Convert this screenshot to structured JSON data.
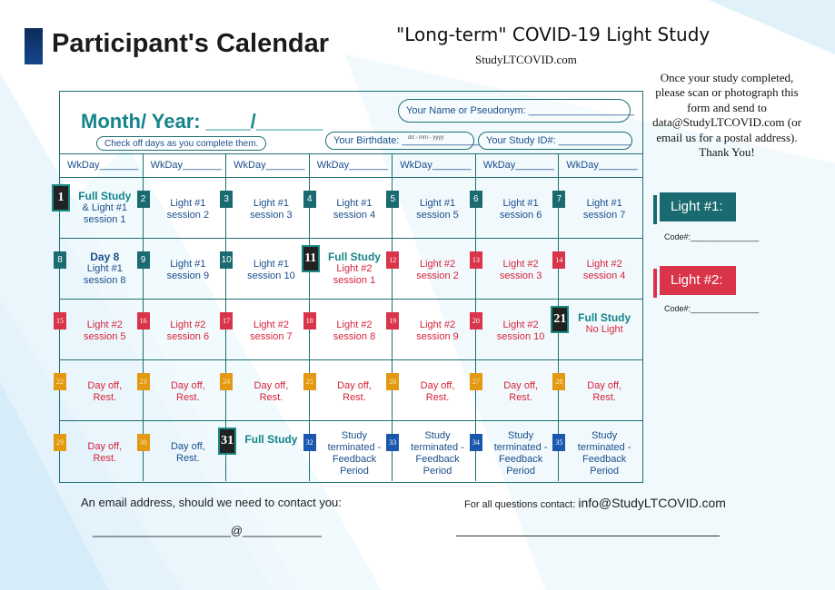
{
  "title": "Participant's Calendar",
  "study_title": "\"Long-term\" COVID-19 Light Study",
  "study_url": "StudyLTCOVID.com",
  "instructions": "Once your study completed, please scan or photograph this form and send to data@StudyLTCOVID.com (or email us for a postal address). Thank You!",
  "header": {
    "month_year": "Month/ Year: ____/______",
    "name_field": "Your Name or Pseudonym: ___________________",
    "checkoff_note": "Check off days as you complete them.",
    "birthdate_field": "Your Birthdate: ______________",
    "birthdate_hint": "dd - mm - yyyy",
    "study_id_field": "Your Study ID#: _____________"
  },
  "weekday_label": "WkDay_______",
  "days": [
    {
      "num": "1",
      "style": "dark",
      "lines": [
        "Full Study",
        "& Light #1",
        "session 1"
      ],
      "color": "teal",
      "bold_first": true
    },
    {
      "num": "2",
      "style": "teal",
      "lines": [
        "Light #1",
        "session 2"
      ],
      "color": "teal"
    },
    {
      "num": "3",
      "style": "teal",
      "lines": [
        "Light #1",
        "session 3"
      ],
      "color": "teal"
    },
    {
      "num": "4",
      "style": "teal",
      "lines": [
        "Light #1",
        "session 4"
      ],
      "color": "teal"
    },
    {
      "num": "5",
      "style": "teal",
      "lines": [
        "Light #1",
        "session 5"
      ],
      "color": "teal"
    },
    {
      "num": "6",
      "style": "teal",
      "lines": [
        "Light #1",
        "session 6"
      ],
      "color": "teal"
    },
    {
      "num": "7",
      "style": "teal",
      "lines": [
        "Light #1",
        "session 7"
      ],
      "color": "teal"
    },
    {
      "num": "8",
      "style": "teal",
      "lines": [
        "Day 8",
        "Light #1",
        "session 8"
      ],
      "color": "teal",
      "bold_first": true,
      "navy_first": true
    },
    {
      "num": "9",
      "style": "teal",
      "lines": [
        "Light #1",
        "session 9"
      ],
      "color": "teal"
    },
    {
      "num": "10",
      "style": "teal",
      "lines": [
        "Light #1",
        "session 10"
      ],
      "color": "teal"
    },
    {
      "num": "11",
      "style": "dark",
      "lines": [
        "Full Study",
        "Light #2",
        "session 1"
      ],
      "color": "red",
      "bold_first": true
    },
    {
      "num": "12",
      "style": "red",
      "lines": [
        "Light #2",
        "session 2"
      ],
      "color": "red"
    },
    {
      "num": "13",
      "style": "red",
      "lines": [
        "Light #2",
        "session 3"
      ],
      "color": "red"
    },
    {
      "num": "14",
      "style": "red",
      "lines": [
        "Light #2",
        "session 4"
      ],
      "color": "red"
    },
    {
      "num": "15",
      "style": "red",
      "lines": [
        "Light #2",
        "session 5"
      ],
      "color": "red"
    },
    {
      "num": "16",
      "style": "red",
      "lines": [
        "Light #2",
        "session 6"
      ],
      "color": "red"
    },
    {
      "num": "17",
      "style": "red",
      "lines": [
        "Light #2",
        "session 7"
      ],
      "color": "red"
    },
    {
      "num": "18",
      "style": "red",
      "lines": [
        "Light #2",
        "session 8"
      ],
      "color": "red"
    },
    {
      "num": "19",
      "style": "red",
      "lines": [
        "Light #2",
        "session 9"
      ],
      "color": "red"
    },
    {
      "num": "20",
      "style": "red",
      "lines": [
        "Light #2",
        "session 10"
      ],
      "color": "red"
    },
    {
      "num": "21",
      "style": "dark",
      "lines": [
        "Full Study",
        "No Light"
      ],
      "color": "red",
      "bold_first": true
    },
    {
      "num": "22",
      "style": "orange",
      "lines": [
        "Day off,",
        "Rest."
      ],
      "color": "red"
    },
    {
      "num": "23",
      "style": "orange",
      "lines": [
        "Day off,",
        "Rest."
      ],
      "color": "red"
    },
    {
      "num": "24",
      "style": "orange",
      "lines": [
        "Day off,",
        "Rest."
      ],
      "color": "red"
    },
    {
      "num": "25",
      "style": "orange",
      "lines": [
        "Day off,",
        "Rest."
      ],
      "color": "red"
    },
    {
      "num": "26",
      "style": "orange",
      "lines": [
        "Day off,",
        "Rest."
      ],
      "color": "red"
    },
    {
      "num": "27",
      "style": "orange",
      "lines": [
        "Day off,",
        "Rest."
      ],
      "color": "red"
    },
    {
      "num": "28",
      "style": "orange",
      "lines": [
        "Day off,",
        "Rest."
      ],
      "color": "red"
    },
    {
      "num": "29",
      "style": "orange",
      "lines": [
        "Day off,",
        "Rest."
      ],
      "color": "red"
    },
    {
      "num": "30",
      "style": "orange",
      "lines": [
        "Day off,",
        "Rest."
      ],
      "color": "teal"
    },
    {
      "num": "31",
      "style": "dark",
      "lines": [
        "Full Study"
      ],
      "color": "teal",
      "bold_first": true
    },
    {
      "num": "32",
      "style": "blue",
      "lines": [
        "Study",
        "terminated -",
        "Feedback",
        "Period"
      ],
      "color": "teal"
    },
    {
      "num": "33",
      "style": "blue",
      "lines": [
        "Study",
        "terminated -",
        "Feedback",
        "Period"
      ],
      "color": "teal"
    },
    {
      "num": "34",
      "style": "blue",
      "lines": [
        "Study",
        "terminated -",
        "Feedback",
        "Period"
      ],
      "color": "teal"
    },
    {
      "num": "35",
      "style": "blue",
      "lines": [
        "Study",
        "terminated -",
        "Feedback",
        "Period"
      ],
      "color": "teal"
    }
  ],
  "legend": {
    "light1": "Light #1:",
    "light2": "Light #2:",
    "code_label": "Code#:_______________"
  },
  "footer": {
    "email_prompt": "An email address, should we need to contact you:",
    "email_line": "_____________________@____________",
    "contact_label": "For all questions contact: ",
    "contact_email": "info@StudyLTCOVID.com"
  },
  "colors": {
    "teal": "#1a6a71",
    "red": "#d9344a",
    "orange": "#e39a12",
    "blue": "#1a58b0",
    "dark": "#222222",
    "title_bar": "#14478f"
  }
}
